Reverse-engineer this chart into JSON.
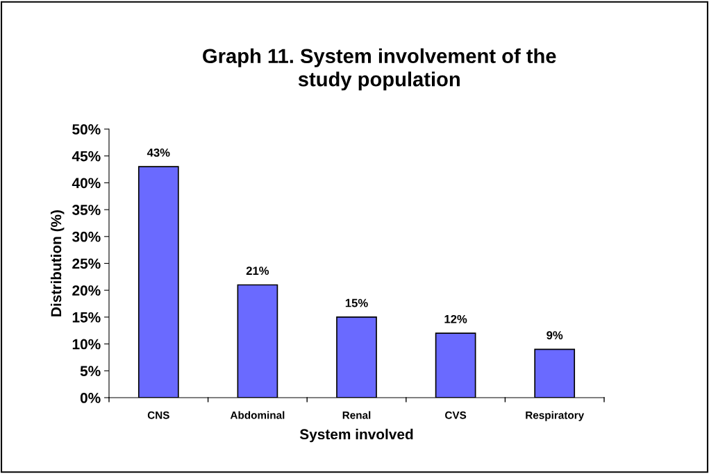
{
  "chart_data": {
    "type": "bar",
    "title": "Graph 11. System involvement of the\nstudy population",
    "xlabel": "System involved",
    "ylabel": "Distribution (%)",
    "categories": [
      "CNS",
      "Abdominal",
      "Renal",
      "CVS",
      "Respiratory"
    ],
    "values": [
      43,
      21,
      15,
      12,
      9
    ],
    "color": "#6a6aff",
    "value_labels": [
      "43%",
      "21%",
      "15%",
      "12%",
      "9%"
    ],
    "ylim": [
      0,
      50
    ],
    "yticks": [
      {
        "value": 0,
        "label": "0%"
      },
      {
        "value": 5,
        "label": "5%"
      },
      {
        "value": 10,
        "label": "10%"
      },
      {
        "value": 15,
        "label": "15%"
      },
      {
        "value": 20,
        "label": "20%"
      },
      {
        "value": 25,
        "label": "25%"
      },
      {
        "value": 30,
        "label": "30%"
      },
      {
        "value": 35,
        "label": "35%"
      },
      {
        "value": 40,
        "label": "40%"
      },
      {
        "value": 45,
        "label": "45%"
      },
      {
        "value": 50,
        "label": "50%"
      }
    ],
    "grid": false,
    "legend": false
  }
}
